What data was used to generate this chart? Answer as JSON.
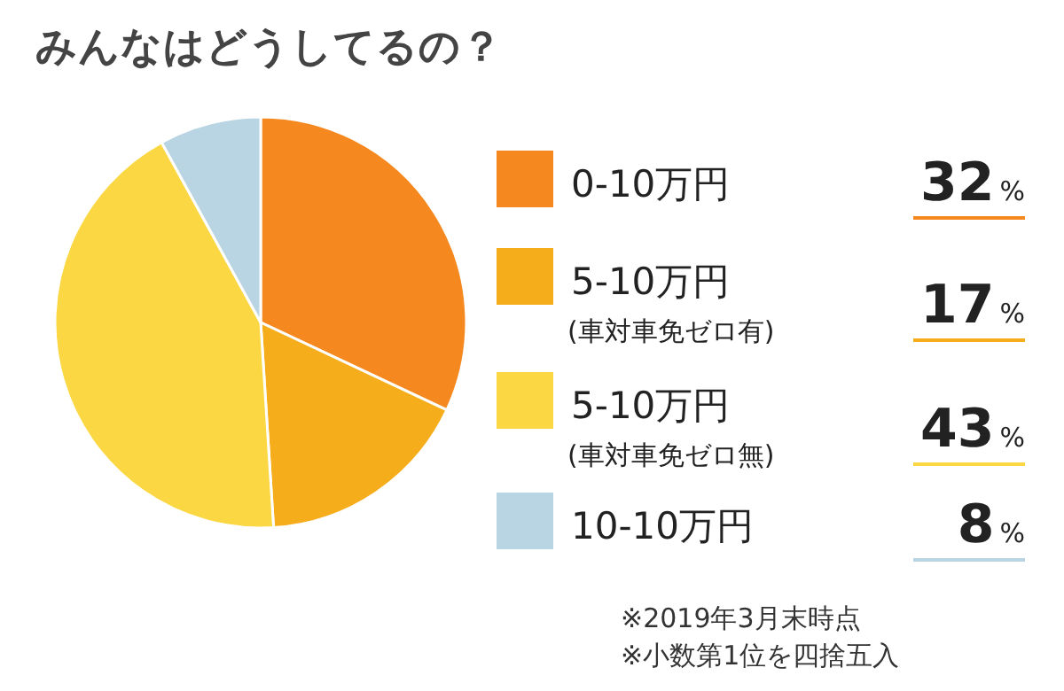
{
  "chart_data": {
    "type": "pie",
    "title": "みんなはどうしてるの？",
    "categories": [
      "0-10万円",
      "5-10万円\n(車対車免ゼロ有)",
      "5-10万円\n(車対車免ゼロ無)",
      "10-10万円"
    ],
    "values": [
      32,
      17,
      43,
      8
    ],
    "value_labels": [
      "32%",
      "17%",
      "43%",
      "8%"
    ],
    "colors": [
      "#f5891f",
      "#f6ad1c",
      "#fbd743",
      "#b9d4e3"
    ],
    "legend": "right",
    "annotations": [
      "※2019年3月末時点",
      "※小数第1位を四捨五入"
    ]
  }
}
